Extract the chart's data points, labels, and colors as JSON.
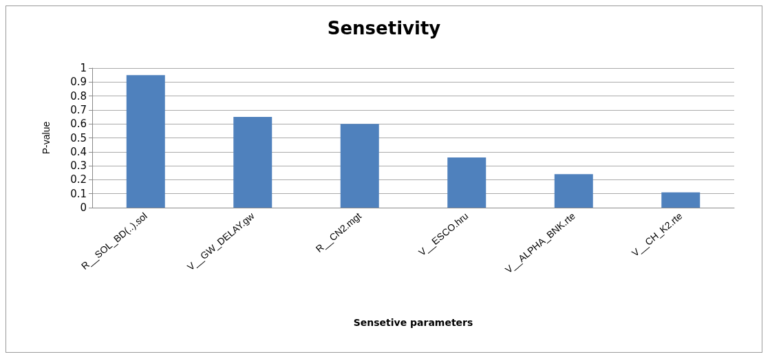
{
  "chart_data": {
    "type": "bar",
    "title": "Sensetivity",
    "xlabel": "Sensetive parameters",
    "ylabel": "P-value",
    "categories": [
      "R__SOL_BD(..).sol",
      "V__GW_DELAY.gw",
      "R__CN2.mgt",
      "V__ESCO.hru",
      "V__ALPHA_BNK.rte",
      "V__CH_K2.rte"
    ],
    "values": [
      0.95,
      0.65,
      0.6,
      0.36,
      0.24,
      0.11
    ],
    "color": "#4f81bd",
    "ylim": [
      0,
      1
    ],
    "yticks": [
      0,
      0.1,
      0.2,
      0.3,
      0.4,
      0.5,
      0.6,
      0.7,
      0.8,
      0.9,
      1
    ],
    "grid": "y"
  }
}
